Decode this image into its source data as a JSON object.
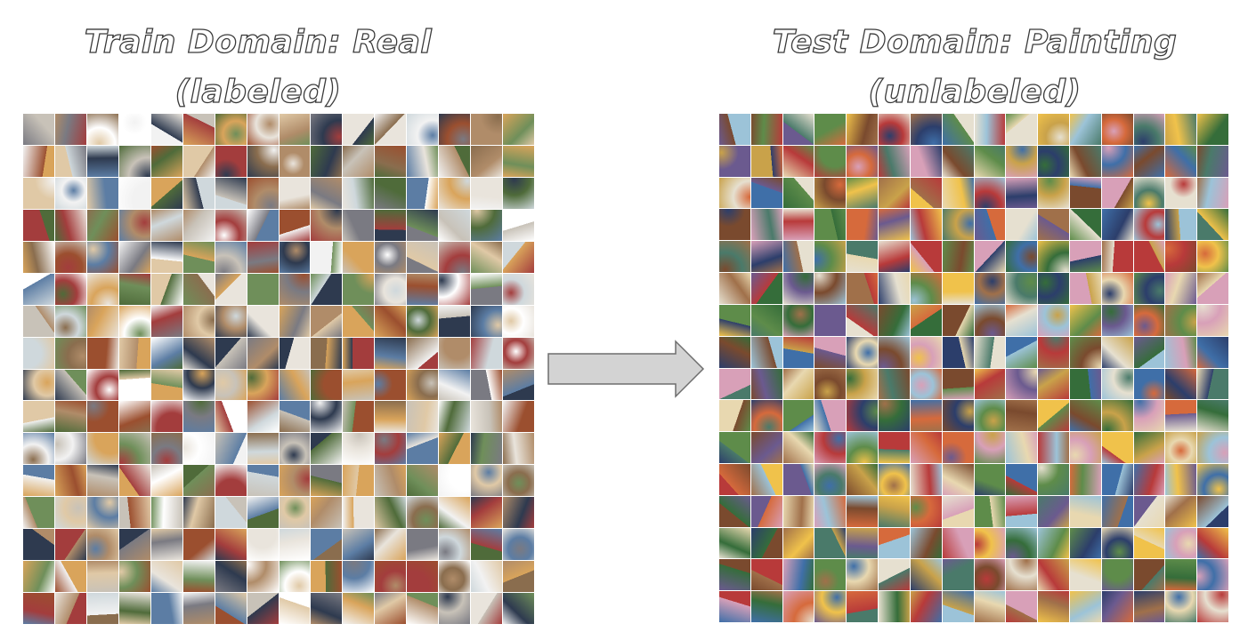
{
  "train": {
    "title_line1": "Train Domain: Real",
    "title_line2": "(labeled)",
    "grid_rows": 16,
    "grid_cols": 16
  },
  "test": {
    "title_line1": "Test Domain: Painting",
    "title_line2": "(unlabeled)",
    "grid_rows": 16,
    "grid_cols": 16
  },
  "arrow": {
    "fill": "#d3d3d3",
    "stroke": "#6e6e6e",
    "icon": "right-arrow-icon"
  },
  "palettes": {
    "real": [
      "#c8c2b8",
      "#8a6d4e",
      "#e9e4dc",
      "#5c7da4",
      "#d9a45b",
      "#4f6b3a",
      "#f2f2f2",
      "#a33d3d",
      "#7a7a82",
      "#b08c69",
      "#2e3a4f",
      "#e0c9a6",
      "#6f8f5a",
      "#cfd8dc",
      "#9b4f2f",
      "#ffffff"
    ],
    "painting": [
      "#3f6fa8",
      "#c9a24a",
      "#7a4a2e",
      "#d66a3c",
      "#5e8c4a",
      "#e8d8b0",
      "#2c3e6b",
      "#b83a3a",
      "#9cc3d8",
      "#f0c24b",
      "#6b5a8f",
      "#4a7a6a",
      "#e6e0d0",
      "#a0704a",
      "#d8a0b8",
      "#356d3a"
    ]
  }
}
